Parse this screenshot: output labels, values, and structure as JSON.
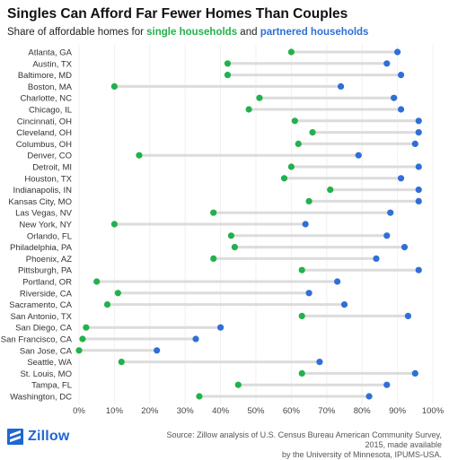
{
  "title": "Singles Can Afford Far Fewer Homes Than Couples",
  "subtitle": {
    "prefix": "Share of affordable homes for ",
    "single": "single households",
    "middle": " and ",
    "partnered": "partnered households"
  },
  "footer": {
    "logo": "Zillow",
    "source_line1": "Source: Zillow analysis of U.S. Census Bureau American Community Survey, 2015, made available",
    "source_line2": "by the University of Minnesota, IPUMS-USA."
  },
  "colors": {
    "single": "#22b14c",
    "partnered": "#2f6fd6",
    "connector": "#dcdcdc"
  },
  "chart_data": {
    "type": "dumbbell",
    "xlim": [
      0,
      100
    ],
    "xticks": [
      0,
      10,
      20,
      30,
      40,
      50,
      60,
      70,
      80,
      90,
      100
    ],
    "xtick_labels": [
      "0%",
      "10%",
      "20%",
      "30%",
      "40%",
      "50%",
      "60%",
      "70%",
      "80%",
      "90%",
      "100%"
    ],
    "categories": [
      "Atlanta, GA",
      "Austin, TX",
      "Baltimore, MD",
      "Boston, MA",
      "Charlotte, NC",
      "Chicago, IL",
      "Cincinnati, OH",
      "Cleveland, OH",
      "Columbus, OH",
      "Denver, CO",
      "Detroit, MI",
      "Houston, TX",
      "Indianapolis, IN",
      "Kansas City, MO",
      "Las Vegas, NV",
      "New York, NY",
      "Orlando, FL",
      "Philadelphia, PA",
      "Phoenix, AZ",
      "Pittsburgh, PA",
      "Portland, OR",
      "Riverside, CA",
      "Sacramento, CA",
      "San Antonio, TX",
      "San Diego, CA",
      "San Francisco, CA",
      "San Jose, CA",
      "Seattle, WA",
      "St. Louis, MO",
      "Tampa, FL",
      "Washington, DC"
    ],
    "series": [
      {
        "name": "single households",
        "values": [
          60,
          42,
          42,
          10,
          51,
          48,
          61,
          66,
          62,
          17,
          60,
          58,
          71,
          65,
          38,
          10,
          43,
          44,
          38,
          63,
          5,
          11,
          8,
          63,
          2,
          1,
          0,
          12,
          63,
          45,
          34
        ]
      },
      {
        "name": "partnered households",
        "values": [
          90,
          87,
          91,
          74,
          89,
          91,
          96,
          96,
          95,
          79,
          96,
          91,
          96,
          96,
          88,
          64,
          87,
          92,
          84,
          96,
          73,
          65,
          75,
          93,
          40,
          33,
          22,
          68,
          95,
          87,
          82
        ]
      }
    ]
  }
}
